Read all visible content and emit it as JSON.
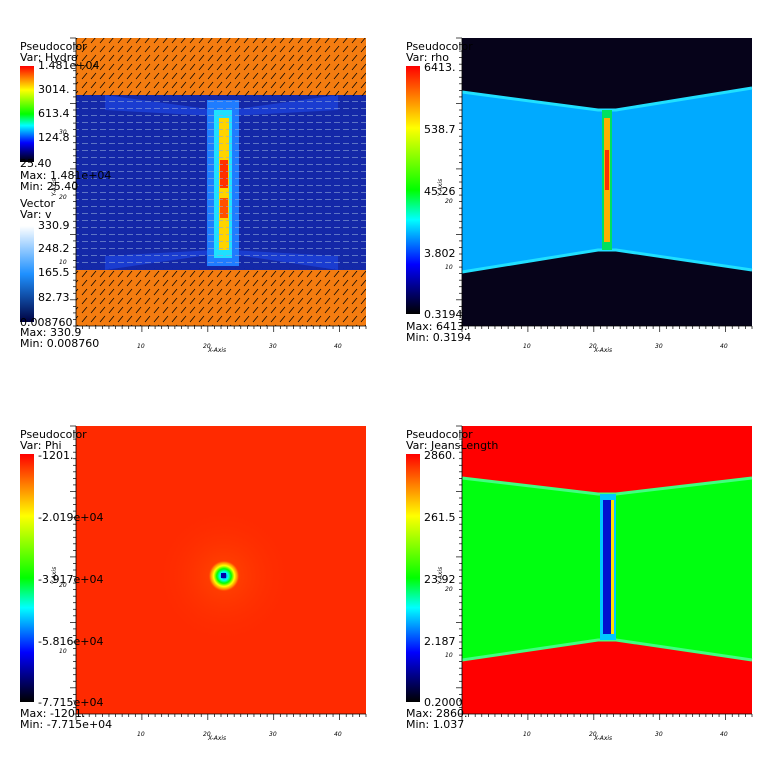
{
  "chart_data": [
    {
      "type": "heatmap",
      "legend_title": "Pseudocolor",
      "variable": "Var: Hydro",
      "colorbar_ticks": [
        "1.481e+04",
        "3014.",
        "613.4",
        "124.8",
        "25.40"
      ],
      "scale": "log",
      "range": [
        25.4,
        14810
      ],
      "max_label": "Max: 1.481e+04",
      "min_label": "Min:  25.40",
      "vector": {
        "title": "Vector",
        "variable": "Var: v",
        "colorbar_ticks": [
          "330.9",
          "248.2",
          "165.5",
          "82.73",
          "0.008760"
        ],
        "max_label": "Max:  330.9",
        "min_label": "Min:  0.008760"
      },
      "xlabel": "X-Axis",
      "ylabel": "Y-Axis",
      "xticks": [
        "10",
        "20",
        "30",
        "40"
      ],
      "yticks": [
        "10",
        "20",
        "30"
      ],
      "xlim": [
        0,
        44
      ],
      "ylim": [
        0,
        44
      ]
    },
    {
      "type": "heatmap",
      "legend_title": "Pseudocolor",
      "variable": "Var: rho",
      "colorbar_ticks": [
        "6413.",
        "538.7",
        "45.26",
        "3.802",
        "0.3194"
      ],
      "scale": "log",
      "range": [
        0.3194,
        6413
      ],
      "max_label": "Max:  6413.",
      "min_label": "Min:  0.3194",
      "xlabel": "X-Axis",
      "ylabel": "Y-Axis",
      "xticks": [
        "10",
        "20",
        "30",
        "40"
      ],
      "yticks": [
        "10",
        "20"
      ],
      "xlim": [
        0,
        44
      ],
      "ylim": [
        0,
        44
      ]
    },
    {
      "type": "heatmap",
      "legend_title": "Pseudocolor",
      "variable": "Var: Phi",
      "colorbar_ticks": [
        "-1201.",
        "-2.019e+04",
        "-3.917e+04",
        "-5.816e+04",
        "-7.715e+04"
      ],
      "scale": "linear",
      "range": [
        -77150,
        -1201
      ],
      "max_label": "Max: -1201.",
      "min_label": "Min: -7.715e+04",
      "xlabel": "X-Axis",
      "ylabel": "Y-Axis",
      "xticks": [
        "10",
        "20",
        "30",
        "40"
      ],
      "yticks": [
        "10",
        "20"
      ],
      "xlim": [
        0,
        44
      ],
      "ylim": [
        0,
        44
      ]
    },
    {
      "type": "heatmap",
      "legend_title": "Pseudocolor",
      "variable": "Var: JeansLength",
      "colorbar_ticks": [
        "2860.",
        "261.5",
        "23.92",
        "2.187",
        "0.2000"
      ],
      "scale": "log",
      "range": [
        0.2,
        2860
      ],
      "max_label": "Max:  2860.",
      "min_label": "Min:  1.037",
      "xlabel": "X-Axis",
      "ylabel": "Y-Axis",
      "xticks": [
        "10",
        "20",
        "30",
        "40"
      ],
      "yticks": [
        "10",
        "20"
      ],
      "xlim": [
        0,
        44
      ],
      "ylim": [
        0,
        44
      ]
    }
  ]
}
